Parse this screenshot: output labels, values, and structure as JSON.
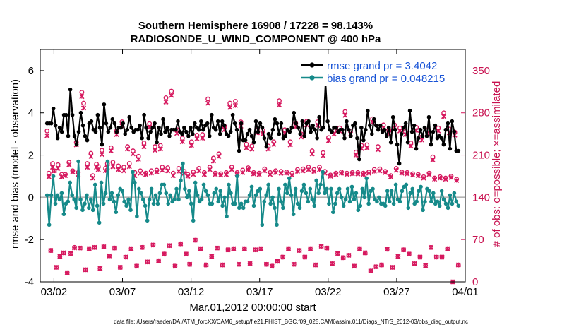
{
  "chart_data": {
    "type": "line",
    "title": "Southern Hemisphere 16908 / 17228 = 98.143%",
    "subtitle": "RADIOSONDE_U_WIND_COMPONENT @ 400 hPa",
    "xlabel": "Mar.01,2012 00:00:00 start",
    "ylabel": "rmse and bias (model - observation)",
    "y2label": "# of obs: o=possible; ×=assimilated",
    "xlim": [
      0.5,
      31.5
    ],
    "ylim": [
      -4,
      7
    ],
    "y2lim": [
      0,
      385
    ],
    "x_ticks": [
      {
        "x": 1.5,
        "label": "03/02"
      },
      {
        "x": 6.5,
        "label": "03/07"
      },
      {
        "x": 11.5,
        "label": "03/12"
      },
      {
        "x": 16.5,
        "label": "03/17"
      },
      {
        "x": 21.5,
        "label": "03/22"
      },
      {
        "x": 26.5,
        "label": "03/27"
      },
      {
        "x": 31.5,
        "label": "04/01"
      }
    ],
    "y_ticks": [
      -4,
      -2,
      0,
      2,
      4,
      6
    ],
    "y2_ticks": [
      0,
      70,
      140,
      210,
      280,
      350
    ],
    "colors": {
      "rmse": "#000000",
      "bias": "#168a8a",
      "obs": "#d6185e",
      "zero": "#b4b4b4",
      "legend": "#1652d6"
    },
    "series": [
      {
        "name": "rmse",
        "legend": "rmse grand pr = 3.4042",
        "values": [
          3.5,
          3.5,
          3.5,
          4.2,
          3.4,
          2.8,
          3.3,
          3.1,
          3.9,
          3.9,
          2.9,
          5.1,
          3.9,
          2.9,
          2.5,
          3.1,
          4.0,
          3.4,
          2.9,
          2.7,
          3.5,
          3.6,
          3.2,
          3.1,
          3.9,
          3.3,
          2.5,
          4.4,
          3.5,
          3.1,
          3.3,
          3.7,
          3.5,
          3.1,
          3.3,
          3.3,
          3.5,
          3.0,
          3.2,
          3.8,
          3.3,
          3.1,
          3.2,
          3.2,
          3.4,
          2.8,
          3.9,
          3.3,
          2.8,
          3.1,
          3.3,
          3.5,
          2.6,
          3.3,
          3.0,
          3.7,
          3.1,
          3.3,
          2.9,
          3.2,
          3.2,
          3.2,
          3.6,
          3.1,
          3.0,
          3.3,
          3.1,
          2.9,
          3.3,
          3.0,
          3.5,
          3.3,
          3.2,
          3.6,
          3.2,
          3.4,
          3.5,
          2.9,
          3.9,
          3.3,
          3.2,
          3.6,
          3.0,
          3.6,
          3.4,
          3.0,
          2.9,
          3.1,
          3.9,
          3.5,
          3.2,
          2.2,
          3.5,
          2.7,
          2.7,
          3.0,
          3.2,
          2.9,
          2.6,
          3.6,
          3.1,
          3.5,
          3.3,
          2.8,
          2.4,
          3.0,
          2.8,
          3.2,
          3.7,
          3.5,
          3.0,
          3.5,
          2.8,
          2.9,
          3.2,
          3.1,
          3.3,
          4.0,
          3.5,
          3.3,
          3.0,
          3.6,
          2.9,
          3.5,
          3.6,
          3.1,
          3.4,
          3.2,
          2.8,
          3.8,
          3.2,
          3.3,
          5.4,
          3.6,
          3.2,
          3.1,
          3.3,
          3.3,
          3.1,
          3.2,
          3.2,
          2.8,
          3.6,
          3.2,
          2.9,
          3.4,
          3.5,
          2.8,
          1.8,
          3.3,
          2.7,
          3.2,
          4.1,
          3.4,
          3.0,
          3.7,
          3.4,
          3.2,
          3.4,
          3.1,
          3.2,
          2.9,
          3.3,
          2.6,
          3.8,
          3.2,
          2.5,
          1.6,
          3.0,
          3.3,
          3.5,
          2.6,
          4.1,
          3.1,
          3.4,
          2.3,
          2.8,
          3.2,
          2.9,
          3.3,
          2.9,
          3.8,
          2.5,
          3.1,
          3.4,
          2.8,
          2.9,
          2.8,
          2.5,
          3.2,
          3.5,
          2.3,
          3.6,
          3.1,
          2.2,
          2.2
        ]
      },
      {
        "name": "bias",
        "legend": "bias grand pr = 0.048215",
        "values": [
          0.1,
          -1.3,
          0.1,
          1.0,
          -0.3,
          0.1,
          -0.1,
          0.2,
          -0.8,
          -0.3,
          -0.2,
          0.7,
          0.1,
          -0.1,
          -0.5,
          1.7,
          -0.1,
          -0.6,
          -0.3,
          0.1,
          -0.5,
          -0.1,
          -0.6,
          0.6,
          -0.4,
          -1.2,
          0.7,
          -0.3,
          0.2,
          1.7,
          -0.1,
          0.2,
          -0.2,
          -0.7,
          0.1,
          0.4,
          0.3,
          -0.2,
          -0.4,
          -0.1,
          -0.6,
          1.2,
          0.7,
          -0.9,
          0.4,
          0.2,
          -0.1,
          -0.4,
          -1.1,
          -0.1,
          0.4,
          -0.3,
          0.1,
          -0.3,
          0.2,
          0.6,
          0.6,
          0.2,
          -0.3,
          0.1,
          -0.2,
          -0.1,
          0.4,
          -0.1,
          0.8,
          1.6,
          0.4,
          0.0,
          0.3,
          -0.3,
          -1.1,
          0.7,
          0.1,
          -0.2,
          -0.1,
          0.6,
          0.3,
          0.1,
          -0.3,
          -0.3,
          0.2,
          0.4,
          -0.2,
          0.3,
          -0.4,
          0.0,
          -0.9,
          0.6,
          0.2,
          -0.3,
          -0.3,
          1.0,
          -0.5,
          -0.3,
          -0.5,
          -0.2,
          -0.2,
          0.1,
          0.5,
          -0.4,
          0.1,
          0.3,
          0.4,
          -1.3,
          -0.2,
          0.1,
          0.6,
          -0.3,
          0.0,
          -0.5,
          -1.3,
          0.4,
          -0.2,
          -0.5,
          0.6,
          0.2,
          0.9,
          0.1,
          -0.8,
          0.4,
          -0.3,
          -0.5,
          0.3,
          0.6,
          0.2,
          -0.2,
          0.4,
          -0.1,
          -0.4,
          0.8,
          0.2,
          0.6,
          1.2,
          0.2,
          0.4,
          -0.3,
          0.4,
          -0.7,
          -0.3,
          0.2,
          0.4,
          0.0,
          -0.4,
          -0.1,
          0.4,
          -0.2,
          0.5,
          -0.1,
          0.2,
          -0.6,
          -0.4,
          0.4,
          0.0,
          0.9,
          -0.3,
          0.3,
          0.4,
          -0.1,
          -0.2,
          0.0,
          -0.3,
          -0.3,
          -0.4,
          0.3,
          -0.2,
          0.3,
          -0.3,
          0.6,
          -0.1,
          -0.2,
          0.3,
          0.5,
          0.6,
          -0.5,
          0.2,
          0.4,
          -0.3,
          -0.2,
          0.3,
          0.5,
          -0.6,
          -0.2,
          0.4,
          0.3,
          -0.2,
          0.2,
          -0.3,
          -0.2,
          -0.4,
          0.3,
          -0.1,
          -0.3,
          -0.5,
          0.1,
          -0.3,
          0.2,
          -0.2,
          -0.4
        ]
      },
      {
        "name": "possible",
        "legend": "o=possible",
        "values": [
          250,
          180,
          52,
          196,
          184,
          24,
          194,
          42,
          178,
          48,
          178,
          15,
          198,
          47,
          184,
          57,
          231,
          181,
          56,
          314,
          296,
          20,
          196,
          55,
          213,
          176,
          57,
          195,
          191,
          22,
          218,
          58,
          188,
          196,
          43,
          222,
          198,
          56,
          250,
          192,
          24,
          265,
          190,
          41,
          224,
          196,
          55,
          217,
          181,
          26,
          208,
          184,
          57,
          230,
          180,
          33,
          262,
          184,
          61,
          224,
          185,
          35,
          226,
          190,
          46,
          305,
          189,
          60,
          316,
          180,
          26,
          252,
          188,
          63,
          238,
          183,
          46,
          178,
          29,
          232,
          182,
          69,
          243,
          188,
          55,
          244,
          181,
          28,
          303,
          190,
          42,
          205,
          180,
          56,
          212,
          179,
          28,
          258,
          181,
          53,
          296,
          190,
          55,
          299,
          181,
          29,
          265,
          185,
          55,
          228,
          189,
          30,
          225,
          181,
          53,
          252,
          180,
          55,
          251,
          187,
          29,
          225,
          181,
          26,
          232,
          184,
          34,
          300,
          183,
          41,
          252,
          182,
          55,
          232,
          180,
          29,
          263,
          186,
          52,
          245,
          187,
          41,
          266,
          190,
          55,
          217,
          186,
          28,
          265,
          190,
          59,
          214,
          183,
          56,
          239,
          177,
          30,
          250,
          180,
          47,
          255,
          182,
          40,
          282,
          180,
          44,
          250,
          181,
          26,
          215,
          181,
          55,
          226,
          180,
          48,
          227,
          182,
          18,
          270,
          186,
          25,
          224,
          187,
          28,
          260,
          183,
          54,
          252,
          176,
          24,
          260,
          188,
          42,
          255,
          182,
          53,
          249,
          181,
          46,
          230,
          179,
          30,
          256,
          178,
          41,
          240,
          174,
          27,
          251,
          180,
          57,
          207,
          172,
          41,
          255,
          174,
          41,
          280,
          172,
          55,
          253,
          175,
          0,
          248,
          170,
          28
        ]
      },
      {
        "name": "assimilated",
        "legend": "×=assimilated",
        "values": [
          242,
          174,
          52,
          190,
          184,
          24,
          188,
          42,
          174,
          48,
          176,
          15,
          194,
          47,
          182,
          56,
          227,
          178,
          56,
          307,
          288,
          20,
          190,
          55,
          208,
          172,
          57,
          190,
          186,
          22,
          211,
          58,
          184,
          190,
          43,
          217,
          191,
          56,
          244,
          186,
          24,
          258,
          184,
          41,
          220,
          191,
          55,
          212,
          176,
          26,
          203,
          180,
          57,
          224,
          178,
          33,
          256,
          180,
          61,
          218,
          182,
          35,
          220,
          185,
          46,
          298,
          184,
          60,
          309,
          176,
          26,
          246,
          183,
          63,
          232,
          180,
          46,
          175,
          29,
          226,
          178,
          69,
          237,
          184,
          55,
          238,
          178,
          28,
          296,
          186,
          42,
          200,
          178,
          56,
          208,
          177,
          28,
          252,
          178,
          53,
          289,
          186,
          55,
          292,
          179,
          29,
          258,
          181,
          55,
          222,
          186,
          30,
          220,
          179,
          53,
          247,
          178,
          55,
          245,
          184,
          29,
          220,
          178,
          26,
          228,
          181,
          34,
          293,
          180,
          41,
          246,
          180,
          55,
          227,
          177,
          29,
          257,
          183,
          52,
          240,
          184,
          41,
          260,
          186,
          55,
          212,
          183,
          28,
          259,
          186,
          59,
          209,
          180,
          56,
          234,
          175,
          30,
          245,
          178,
          47,
          250,
          180,
          40,
          276,
          178,
          44,
          245,
          179,
          26,
          210,
          179,
          55,
          221,
          178,
          48,
          222,
          180,
          18,
          264,
          183,
          25,
          219,
          184,
          28,
          255,
          181,
          54,
          246,
          174,
          24,
          255,
          185,
          42,
          250,
          180,
          53,
          244,
          179,
          46,
          225,
          177,
          30,
          251,
          176,
          41,
          235,
          172,
          27,
          246,
          178,
          57,
          202,
          170,
          41,
          250,
          172,
          41,
          274,
          170,
          55,
          247,
          173,
          0,
          243,
          168,
          28
        ]
      }
    ]
  },
  "footer": {
    "datafile": "data file: /Users/raeder/DAI/ATM_forcXX/CAM6_setup/f.e21.FHIST_BGC.f09_025.CAM6assim.011/Diags_NTrS_2012-03/obs_diag_output.nc"
  }
}
